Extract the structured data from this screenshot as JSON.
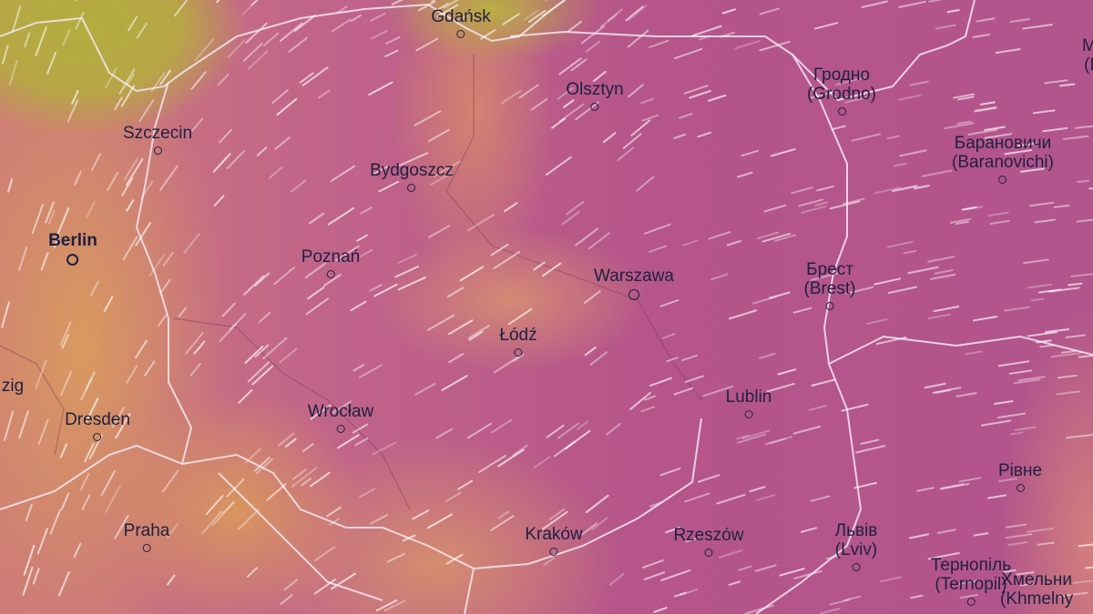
{
  "map": {
    "layer": "wind overlay",
    "colors": {
      "high": "#b3ad3e",
      "mid": "#d9965e",
      "low": "#b5558a",
      "borders": "#f3e6f0",
      "wind_streaks": "#ffffff",
      "labels": "#1e2140"
    },
    "cities": [
      {
        "name": "Gdańsk"
      },
      {
        "name": "Olsztyn"
      },
      {
        "name": "Гродно",
        "alt": "(Grodno)"
      },
      {
        "name": "Szczecin"
      },
      {
        "name": "Bydgoszcz"
      },
      {
        "name": "Барановичи",
        "alt": "(Baranovichi)"
      },
      {
        "name": "Berlin"
      },
      {
        "name": "Poznań"
      },
      {
        "name": "Warszawa"
      },
      {
        "name": "Брест",
        "alt": "(Brest)"
      },
      {
        "name": "Łódź"
      },
      {
        "name": "Lublin"
      },
      {
        "name": "Wrocław"
      },
      {
        "name": "Dresden"
      },
      {
        "name": "zig"
      },
      {
        "name": "Рівне"
      },
      {
        "name": "Praha"
      },
      {
        "name": "Kraków"
      },
      {
        "name": "Rzeszów"
      },
      {
        "name": "Львів",
        "alt": "(Lviv)"
      },
      {
        "name": "Тернопіль",
        "alt": "(Ternopil)"
      },
      {
        "name": "Хмельни",
        "alt": "(Khmelny"
      },
      {
        "name": "M",
        "alt": "(I"
      }
    ]
  }
}
